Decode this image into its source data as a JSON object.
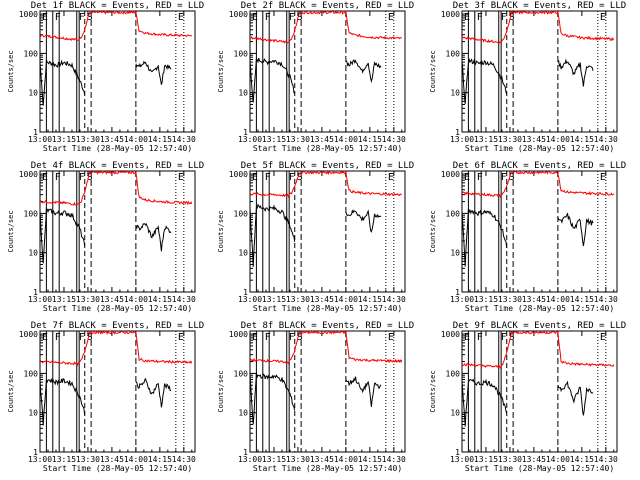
{
  "figure": {
    "x_tick_labels": [
      "13:00",
      "13:15",
      "13:30",
      "13:45",
      "14:00",
      "14:15",
      "14:30"
    ],
    "x_tick_minutes": [
      0,
      15,
      30,
      45,
      60,
      75,
      90
    ],
    "xlabel": "Start Time (28-May-05 12:57:40)",
    "ylabel": "Counts/sec",
    "y_tick_labels": [
      "1",
      "10",
      "100",
      "1000"
    ],
    "y_tick_values": [
      1,
      10,
      100,
      1000
    ],
    "colors": {
      "events": "#000000",
      "lld": "#ff0000",
      "axes": "#000000"
    },
    "markers": [
      {
        "label": "E",
        "minute": 0
      },
      {
        "label": "F",
        "minute": 8
      },
      {
        "label": "F",
        "minute": 23
      },
      {
        "label": "S",
        "minute": 28
      },
      {
        "label": "E",
        "minute": 85
      }
    ]
  },
  "chart_data": [
    {
      "type": "line",
      "title": "Det 1f BLACK = Events, RED = LLD",
      "xlim_minutes": [
        0,
        97
      ],
      "ylim": [
        1,
        1200
      ],
      "yscale": "log",
      "series": [
        {
          "name": "Events",
          "x": [
            0,
            2,
            4,
            8,
            10,
            15,
            20,
            25,
            28,
            60,
            62,
            66,
            70,
            74,
            76,
            78,
            82
          ],
          "y": [
            60,
            5,
            60,
            55,
            50,
            58,
            50,
            20,
            10,
            55,
            45,
            60,
            30,
            50,
            15,
            50,
            40
          ]
        },
        {
          "name": "LLD",
          "x": [
            0,
            5,
            10,
            15,
            20,
            24,
            26,
            28,
            31,
            60,
            62,
            66,
            75,
            85,
            95
          ],
          "y": [
            290,
            275,
            260,
            245,
            230,
            220,
            270,
            400,
            1100,
            1100,
            380,
            330,
            300,
            290,
            280
          ]
        }
      ]
    },
    {
      "type": "line",
      "title": "Det 2f BLACK = Events, RED = LLD",
      "xlim_minutes": [
        0,
        97
      ],
      "ylim": [
        1,
        1200
      ],
      "yscale": "log",
      "series": [
        {
          "name": "Events",
          "x": [
            0,
            2,
            4,
            8,
            10,
            15,
            20,
            25,
            28,
            60,
            62,
            66,
            70,
            74,
            76,
            78,
            82
          ],
          "y": [
            70,
            5,
            70,
            65,
            60,
            65,
            55,
            25,
            10,
            65,
            50,
            70,
            35,
            60,
            18,
            55,
            45
          ]
        },
        {
          "name": "LLD",
          "x": [
            0,
            5,
            10,
            15,
            20,
            24,
            26,
            28,
            31,
            60,
            62,
            66,
            75,
            85,
            95
          ],
          "y": [
            250,
            240,
            225,
            210,
            200,
            190,
            240,
            380,
            1100,
            1100,
            330,
            290,
            260,
            250,
            240
          ]
        }
      ]
    },
    {
      "type": "line",
      "title": "Det 3f BLACK = Events, RED = LLD",
      "xlim_minutes": [
        0,
        97
      ],
      "ylim": [
        1,
        1200
      ],
      "yscale": "log",
      "series": [
        {
          "name": "Events",
          "x": [
            0,
            2,
            4,
            8,
            10,
            15,
            20,
            25,
            28,
            60,
            62,
            66,
            70,
            74,
            76,
            78,
            82
          ],
          "y": [
            65,
            5,
            65,
            60,
            55,
            60,
            50,
            22,
            10,
            60,
            45,
            65,
            30,
            55,
            15,
            50,
            40
          ]
        },
        {
          "name": "LLD",
          "x": [
            0,
            5,
            10,
            15,
            20,
            24,
            26,
            28,
            31,
            60,
            62,
            66,
            75,
            85,
            95
          ],
          "y": [
            250,
            240,
            225,
            210,
            200,
            185,
            230,
            370,
            1100,
            1100,
            320,
            280,
            250,
            240,
            230
          ]
        }
      ]
    },
    {
      "type": "line",
      "title": "Det 4f BLACK = Events, RED = LLD",
      "xlim_minutes": [
        0,
        97
      ],
      "ylim": [
        1,
        1200
      ],
      "yscale": "log",
      "series": [
        {
          "name": "Events",
          "x": [
            0,
            2,
            4,
            8,
            10,
            15,
            20,
            25,
            28,
            60,
            62,
            66,
            70,
            74,
            76,
            78,
            82
          ],
          "y": [
            120,
            5,
            120,
            110,
            100,
            105,
            90,
            40,
            15,
            50,
            40,
            55,
            25,
            45,
            12,
            45,
            35
          ]
        },
        {
          "name": "LLD",
          "x": [
            0,
            5,
            10,
            15,
            20,
            24,
            26,
            28,
            31,
            60,
            62,
            66,
            75,
            85,
            95
          ],
          "y": [
            200,
            195,
            190,
            185,
            175,
            170,
            210,
            350,
            1100,
            1100,
            260,
            220,
            200,
            190,
            185
          ]
        }
      ]
    },
    {
      "type": "line",
      "title": "Det 5f BLACK = Events, RED = LLD",
      "xlim_minutes": [
        0,
        97
      ],
      "ylim": [
        1,
        1200
      ],
      "yscale": "log",
      "series": [
        {
          "name": "Events",
          "x": [
            0,
            2,
            4,
            8,
            10,
            15,
            20,
            25,
            28,
            60,
            62,
            66,
            70,
            74,
            76,
            78,
            82
          ],
          "y": [
            140,
            5,
            150,
            140,
            130,
            135,
            110,
            50,
            20,
            110,
            90,
            120,
            70,
            100,
            30,
            95,
            80
          ]
        },
        {
          "name": "LLD",
          "x": [
            0,
            5,
            10,
            15,
            20,
            24,
            26,
            28,
            31,
            60,
            62,
            66,
            75,
            85,
            95
          ],
          "y": [
            320,
            310,
            300,
            300,
            290,
            280,
            330,
            500,
            1100,
            1100,
            380,
            340,
            320,
            310,
            300
          ]
        }
      ]
    },
    {
      "type": "line",
      "title": "Det 6f BLACK = Events, RED = LLD",
      "xlim_minutes": [
        0,
        97
      ],
      "ylim": [
        1,
        1200
      ],
      "yscale": "log",
      "series": [
        {
          "name": "Events",
          "x": [
            0,
            2,
            4,
            8,
            10,
            15,
            20,
            25,
            28,
            60,
            62,
            66,
            70,
            74,
            76,
            78,
            82
          ],
          "y": [
            110,
            5,
            120,
            110,
            100,
            110,
            90,
            40,
            15,
            80,
            60,
            90,
            40,
            70,
            15,
            65,
            55
          ]
        },
        {
          "name": "LLD",
          "x": [
            0,
            5,
            10,
            15,
            20,
            24,
            26,
            28,
            31,
            60,
            62,
            66,
            75,
            85,
            95
          ],
          "y": [
            330,
            320,
            310,
            300,
            290,
            280,
            330,
            500,
            1100,
            1100,
            390,
            350,
            330,
            320,
            310
          ]
        }
      ]
    },
    {
      "type": "line",
      "title": "Det 7f BLACK = Events, RED = LLD",
      "xlim_minutes": [
        0,
        97
      ],
      "ylim": [
        1,
        1200
      ],
      "yscale": "log",
      "series": [
        {
          "name": "Events",
          "x": [
            0,
            2,
            4,
            8,
            10,
            15,
            20,
            25,
            28,
            60,
            62,
            66,
            70,
            74,
            76,
            78,
            82
          ],
          "y": [
            70,
            5,
            70,
            65,
            60,
            65,
            55,
            25,
            10,
            60,
            45,
            65,
            30,
            55,
            15,
            50,
            40
          ]
        },
        {
          "name": "LLD",
          "x": [
            0,
            5,
            10,
            15,
            20,
            24,
            26,
            28,
            31,
            60,
            62,
            66,
            75,
            85,
            95
          ],
          "y": [
            200,
            195,
            190,
            185,
            180,
            175,
            220,
            360,
            1100,
            1100,
            230,
            210,
            200,
            195,
            190
          ]
        }
      ]
    },
    {
      "type": "line",
      "title": "Det 8f BLACK = Events, RED = LLD",
      "xlim_minutes": [
        0,
        97
      ],
      "ylim": [
        1,
        1200
      ],
      "yscale": "log",
      "series": [
        {
          "name": "Events",
          "x": [
            0,
            2,
            4,
            8,
            10,
            15,
            20,
            25,
            28,
            60,
            62,
            66,
            70,
            74,
            76,
            78,
            82
          ],
          "y": [
            90,
            5,
            90,
            85,
            80,
            85,
            70,
            30,
            12,
            70,
            55,
            75,
            35,
            60,
            15,
            55,
            45
          ]
        },
        {
          "name": "LLD",
          "x": [
            0,
            5,
            10,
            15,
            20,
            24,
            26,
            28,
            31,
            60,
            62,
            66,
            75,
            85,
            95
          ],
          "y": [
            220,
            215,
            210,
            205,
            200,
            190,
            240,
            380,
            1100,
            1100,
            250,
            225,
            215,
            210,
            205
          ]
        }
      ]
    },
    {
      "type": "line",
      "title": "Det 9f BLACK = Events, RED = LLD",
      "xlim_minutes": [
        0,
        97
      ],
      "ylim": [
        1,
        1200
      ],
      "yscale": "log",
      "series": [
        {
          "name": "Events",
          "x": [
            0,
            2,
            4,
            8,
            10,
            15,
            20,
            25,
            28,
            60,
            62,
            66,
            70,
            74,
            76,
            78,
            82
          ],
          "y": [
            65,
            5,
            65,
            60,
            55,
            60,
            50,
            22,
            10,
            50,
            40,
            55,
            20,
            45,
            8,
            40,
            35
          ]
        },
        {
          "name": "LLD",
          "x": [
            0,
            5,
            10,
            15,
            20,
            24,
            26,
            28,
            31,
            60,
            62,
            66,
            75,
            85,
            95
          ],
          "y": [
            170,
            165,
            160,
            155,
            150,
            145,
            190,
            330,
            1100,
            1100,
            200,
            180,
            170,
            165,
            160
          ]
        }
      ]
    }
  ]
}
